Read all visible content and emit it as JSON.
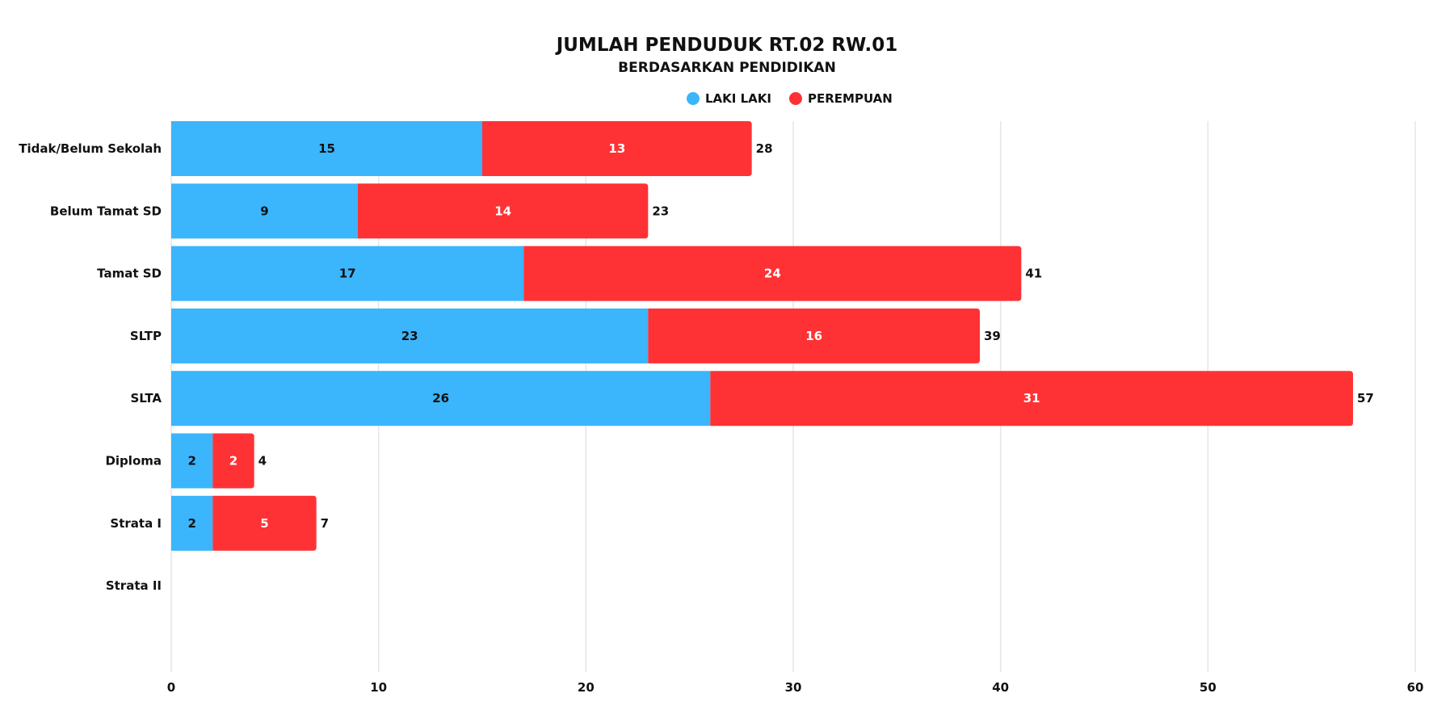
{
  "chart_data": {
    "type": "bar",
    "orientation": "horizontal",
    "stacked": true,
    "title": "JUMLAH PENDUDUK RT.02 RW.01",
    "subtitle": "BERDASARKAN PENDIDIKAN",
    "categories": [
      "Tidak/Belum Sekolah",
      "Belum Tamat SD",
      "Tamat SD",
      "SLTP",
      "SLTA",
      "Diploma",
      "Strata I",
      "Strata II"
    ],
    "series": [
      {
        "name": "LAKI LAKI",
        "color": "#3bb5fc",
        "label_color": "#111111",
        "values": [
          15,
          9,
          17,
          23,
          26,
          2,
          2,
          0
        ]
      },
      {
        "name": "PEREMPUAN",
        "color": "#fe3234",
        "label_color": "#ffffff",
        "values": [
          13,
          14,
          24,
          16,
          31,
          2,
          5,
          0
        ]
      }
    ],
    "totals": [
      28,
      23,
      41,
      39,
      57,
      4,
      7,
      0
    ],
    "xlim": [
      0,
      60
    ],
    "xticks": [
      0,
      10,
      20,
      30,
      40,
      50,
      60
    ],
    "grid": true,
    "legend_position": "top-center",
    "xlabel": "",
    "ylabel": ""
  }
}
